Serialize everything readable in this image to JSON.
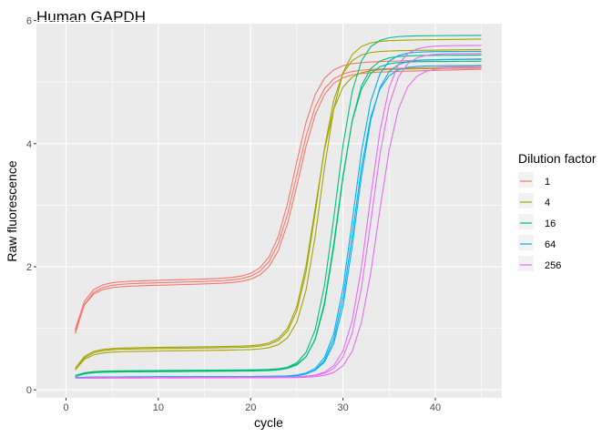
{
  "chart_data": {
    "type": "line",
    "title": "Human GAPDH",
    "xlabel": "cycle",
    "ylabel": "Raw fluorescence",
    "xlim": [
      -3.2,
      47.2
    ],
    "ylim": [
      -0.13,
      5.95
    ],
    "xticks": [
      0,
      10,
      20,
      30,
      40
    ],
    "yticks": [
      0,
      2,
      4,
      6
    ],
    "grid": true,
    "legend": {
      "title": "Dilution factor",
      "position": "right"
    },
    "cycles_first": 1,
    "cycles_last": 45,
    "series": [
      {
        "name": "1",
        "color": "#F8766D",
        "replicates": [
          {
            "base": 1.72,
            "baseline_slope": 0.004,
            "plateau": 5.1,
            "midpoint": 25.0,
            "steepness": 0.78,
            "start": 0.93
          },
          {
            "base": 1.76,
            "baseline_slope": 0.004,
            "plateau": 5.22,
            "midpoint": 24.8,
            "steepness": 0.8,
            "start": 1.0
          },
          {
            "base": 1.68,
            "baseline_slope": 0.004,
            "plateau": 5.05,
            "midpoint": 25.2,
            "steepness": 0.78,
            "start": 0.97
          }
        ]
      },
      {
        "name": "4",
        "color": "#A3A500",
        "replicates": [
          {
            "base": 0.66,
            "baseline_slope": 0.002,
            "plateau": 5.45,
            "midpoint": 27.2,
            "steepness": 0.9,
            "start": 0.33
          },
          {
            "base": 0.62,
            "baseline_slope": 0.002,
            "plateau": 5.62,
            "midpoint": 27.6,
            "steepness": 0.9,
            "start": 0.33
          },
          {
            "base": 0.68,
            "baseline_slope": 0.002,
            "plateau": 5.15,
            "midpoint": 27.0,
            "steepness": 0.9,
            "start": 0.36
          }
        ]
      },
      {
        "name": "16",
        "color": "#00BF7D",
        "replicates": [
          {
            "base": 0.3,
            "baseline_slope": 0.001,
            "plateau": 5.72,
            "midpoint": 29.2,
            "steepness": 0.9,
            "start": 0.22
          },
          {
            "base": 0.31,
            "baseline_slope": 0.001,
            "plateau": 5.4,
            "midpoint": 29.5,
            "steepness": 0.9,
            "start": 0.24
          },
          {
            "base": 0.29,
            "baseline_slope": 0.001,
            "plateau": 5.3,
            "midpoint": 29.4,
            "steepness": 0.9,
            "start": 0.22
          }
        ]
      },
      {
        "name": "64",
        "color": "#00B0F6",
        "replicates": [
          {
            "base": 0.21,
            "baseline_slope": 0.0005,
            "plateau": 5.48,
            "midpoint": 31.1,
            "steepness": 0.9,
            "start": 0.2
          },
          {
            "base": 0.21,
            "baseline_slope": 0.0005,
            "plateau": 5.35,
            "midpoint": 31.4,
            "steepness": 0.9,
            "start": 0.2
          },
          {
            "base": 0.2,
            "baseline_slope": 0.0005,
            "plateau": 5.25,
            "midpoint": 31.2,
            "steepness": 0.9,
            "start": 0.19
          }
        ]
      },
      {
        "name": "256",
        "color": "#E76BF3",
        "replicates": [
          {
            "base": 0.2,
            "baseline_slope": 0.0004,
            "plateau": 5.58,
            "midpoint": 32.8,
            "steepness": 0.88,
            "start": 0.19
          },
          {
            "base": 0.2,
            "baseline_slope": 0.0004,
            "plateau": 5.45,
            "midpoint": 33.1,
            "steepness": 0.88,
            "start": 0.19
          },
          {
            "base": 0.19,
            "baseline_slope": 0.0004,
            "plateau": 5.22,
            "midpoint": 33.8,
            "steepness": 0.85,
            "start": 0.19
          }
        ]
      }
    ]
  }
}
